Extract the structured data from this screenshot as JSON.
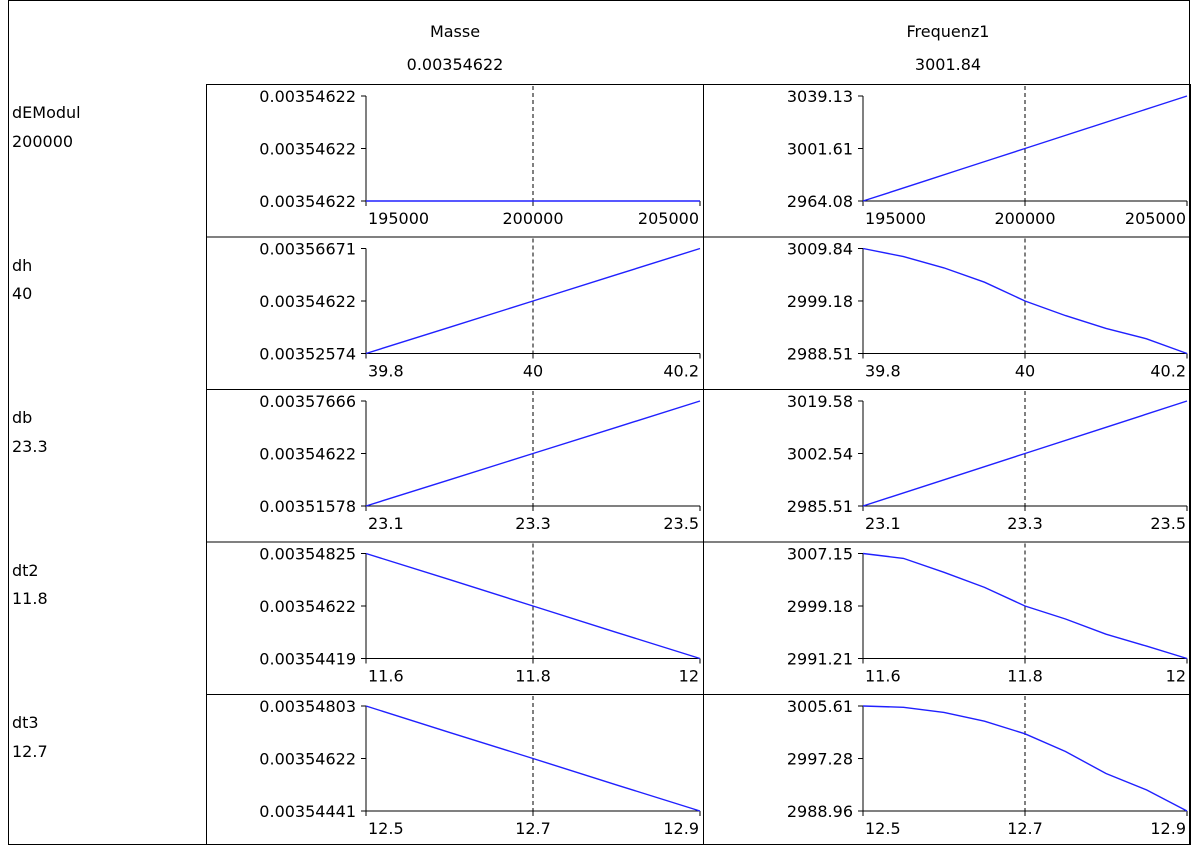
{
  "columns": [
    {
      "name": "Masse",
      "value": "0.00354622"
    },
    {
      "name": "Frequenz1",
      "value": "3001.84"
    }
  ],
  "rows": [
    {
      "name": "dEModul",
      "value": "200000"
    },
    {
      "name": "dh",
      "value": "40"
    },
    {
      "name": "db",
      "value": "23.3"
    },
    {
      "name": "dt2",
      "value": "11.8"
    },
    {
      "name": "dt3",
      "value": "12.7"
    }
  ],
  "colors": {
    "line": "#2020ff",
    "axis": "#000000",
    "background": "#ffffff"
  },
  "chart_data": [
    {
      "type": "line",
      "row": "dEModul",
      "column": "Masse",
      "x_ticks": [
        "195000",
        "200000",
        "205000"
      ],
      "xlim": [
        195000,
        205000
      ],
      "x_marker": 200000,
      "y_ticks": [
        "0.00354622",
        "0.00354622",
        "0.00354622"
      ],
      "ylim": [
        0,
        2
      ],
      "y_tick_values": [
        2,
        1,
        0
      ],
      "series": [
        {
          "x": [
            195000,
            205000
          ],
          "y": [
            0,
            0
          ]
        }
      ]
    },
    {
      "type": "line",
      "row": "dEModul",
      "column": "Frequenz1",
      "x_ticks": [
        "195000",
        "200000",
        "205000"
      ],
      "xlim": [
        195000,
        205000
      ],
      "x_marker": 200000,
      "y_ticks": [
        "3039.13",
        "3001.61",
        "2964.08"
      ],
      "ylim": [
        2964.08,
        3039.13
      ],
      "y_tick_values": [
        3039.13,
        3001.61,
        2964.08
      ],
      "series": [
        {
          "x": [
            195000,
            196000,
            197000,
            198000,
            199000,
            200000,
            201000,
            202000,
            203000,
            204000,
            205000
          ],
          "y": [
            2964.08,
            2971.5,
            2979.0,
            2986.6,
            2994.1,
            3001.61,
            3009.1,
            3016.6,
            3024.1,
            3031.6,
            3039.13
          ]
        }
      ]
    },
    {
      "type": "line",
      "row": "dh",
      "column": "Masse",
      "x_ticks": [
        "39.8",
        "40",
        "40.2"
      ],
      "xlim": [
        39.8,
        40.2
      ],
      "x_marker": 40,
      "y_ticks": [
        "0.00356671",
        "0.00354622",
        "0.00352574"
      ],
      "ylim": [
        0.00352574,
        0.00356671
      ],
      "y_tick_values": [
        0.00356671,
        0.00354622,
        0.00352574
      ],
      "series": [
        {
          "x": [
            39.8,
            39.9,
            40.0,
            40.1,
            40.2
          ],
          "y": [
            0.00352574,
            0.00353598,
            0.00354622,
            0.00355647,
            0.00356671
          ]
        }
      ]
    },
    {
      "type": "line",
      "row": "dh",
      "column": "Frequenz1",
      "x_ticks": [
        "39.8",
        "40",
        "40.2"
      ],
      "xlim": [
        39.8,
        40.2
      ],
      "x_marker": 40,
      "y_ticks": [
        "3009.84",
        "2999.18",
        "2988.51"
      ],
      "ylim": [
        2988.51,
        3009.84
      ],
      "y_tick_values": [
        3009.84,
        2999.18,
        2988.51
      ],
      "series": [
        {
          "x": [
            39.8,
            39.85,
            39.9,
            39.95,
            40.0,
            40.05,
            40.1,
            40.15,
            40.2
          ],
          "y": [
            3009.84,
            3008.2,
            3005.9,
            3003.0,
            2999.18,
            2996.2,
            2993.6,
            2991.5,
            2988.51
          ]
        }
      ]
    },
    {
      "type": "line",
      "row": "db",
      "column": "Masse",
      "x_ticks": [
        "23.1",
        "23.3",
        "23.5"
      ],
      "xlim": [
        23.1,
        23.5
      ],
      "x_marker": 23.3,
      "y_ticks": [
        "0.00357666",
        "0.00354622",
        "0.00351578"
      ],
      "ylim": [
        0.00351578,
        0.00357666
      ],
      "y_tick_values": [
        0.00357666,
        0.00354622,
        0.00351578
      ],
      "series": [
        {
          "x": [
            23.1,
            23.2,
            23.3,
            23.4,
            23.5
          ],
          "y": [
            0.00351578,
            0.003531,
            0.00354622,
            0.00356144,
            0.00357666
          ]
        }
      ]
    },
    {
      "type": "line",
      "row": "db",
      "column": "Frequenz1",
      "x_ticks": [
        "23.1",
        "23.3",
        "23.5"
      ],
      "xlim": [
        23.1,
        23.5
      ],
      "x_marker": 23.3,
      "y_ticks": [
        "3019.58",
        "3002.54",
        "2985.51"
      ],
      "ylim": [
        2985.51,
        3019.58
      ],
      "y_tick_values": [
        3019.58,
        3002.54,
        2985.51
      ],
      "series": [
        {
          "x": [
            23.1,
            23.2,
            23.3,
            23.4,
            23.5
          ],
          "y": [
            2985.51,
            2994.0,
            3002.54,
            3011.06,
            3019.58
          ]
        }
      ]
    },
    {
      "type": "line",
      "row": "dt2",
      "column": "Masse",
      "x_ticks": [
        "11.6",
        "11.8",
        "12"
      ],
      "xlim": [
        11.6,
        12.0
      ],
      "x_marker": 11.8,
      "y_ticks": [
        "0.00354825",
        "0.00354622",
        "0.00354419"
      ],
      "ylim": [
        0.00354419,
        0.00354825
      ],
      "y_tick_values": [
        0.00354825,
        0.00354622,
        0.00354419
      ],
      "series": [
        {
          "x": [
            11.6,
            11.7,
            11.8,
            11.9,
            12.0
          ],
          "y": [
            0.00354825,
            0.00354724,
            0.00354622,
            0.0035452,
            0.00354419
          ]
        }
      ]
    },
    {
      "type": "line",
      "row": "dt2",
      "column": "Frequenz1",
      "x_ticks": [
        "11.6",
        "11.8",
        "12"
      ],
      "xlim": [
        11.6,
        12.0
      ],
      "x_marker": 11.8,
      "y_ticks": [
        "3007.15",
        "2999.18",
        "2991.21"
      ],
      "ylim": [
        2991.21,
        3007.15
      ],
      "y_tick_values": [
        3007.15,
        2999.18,
        2991.21
      ],
      "series": [
        {
          "x": [
            11.6,
            11.65,
            11.7,
            11.75,
            11.8,
            11.85,
            11.9,
            11.95,
            12.0
          ],
          "y": [
            3007.15,
            3006.4,
            3004.3,
            3002.0,
            2999.18,
            2997.2,
            2994.9,
            2993.1,
            2991.21
          ]
        }
      ]
    },
    {
      "type": "line",
      "row": "dt3",
      "column": "Masse",
      "x_ticks": [
        "12.5",
        "12.7",
        "12.9"
      ],
      "xlim": [
        12.5,
        12.9
      ],
      "x_marker": 12.7,
      "y_ticks": [
        "0.00354803",
        "0.00354622",
        "0.00354441"
      ],
      "ylim": [
        0.00354441,
        0.00354803
      ],
      "y_tick_values": [
        0.00354803,
        0.00354622,
        0.00354441
      ],
      "series": [
        {
          "x": [
            12.5,
            12.6,
            12.7,
            12.8,
            12.9
          ],
          "y": [
            0.00354803,
            0.00354712,
            0.00354622,
            0.00354531,
            0.00354441
          ]
        }
      ]
    },
    {
      "type": "line",
      "row": "dt3",
      "column": "Frequenz1",
      "x_ticks": [
        "12.5",
        "12.7",
        "12.9"
      ],
      "xlim": [
        12.5,
        12.9
      ],
      "x_marker": 12.7,
      "y_ticks": [
        "3005.61",
        "2997.28",
        "2988.96"
      ],
      "ylim": [
        2988.96,
        3005.61
      ],
      "y_tick_values": [
        3005.61,
        2997.28,
        2988.96
      ],
      "series": [
        {
          "x": [
            12.5,
            12.55,
            12.6,
            12.65,
            12.7,
            12.75,
            12.8,
            12.85,
            12.9
          ],
          "y": [
            3005.61,
            3005.4,
            3004.6,
            3003.2,
            3001.2,
            2998.4,
            2994.9,
            2992.3,
            2988.96
          ]
        }
      ]
    }
  ]
}
